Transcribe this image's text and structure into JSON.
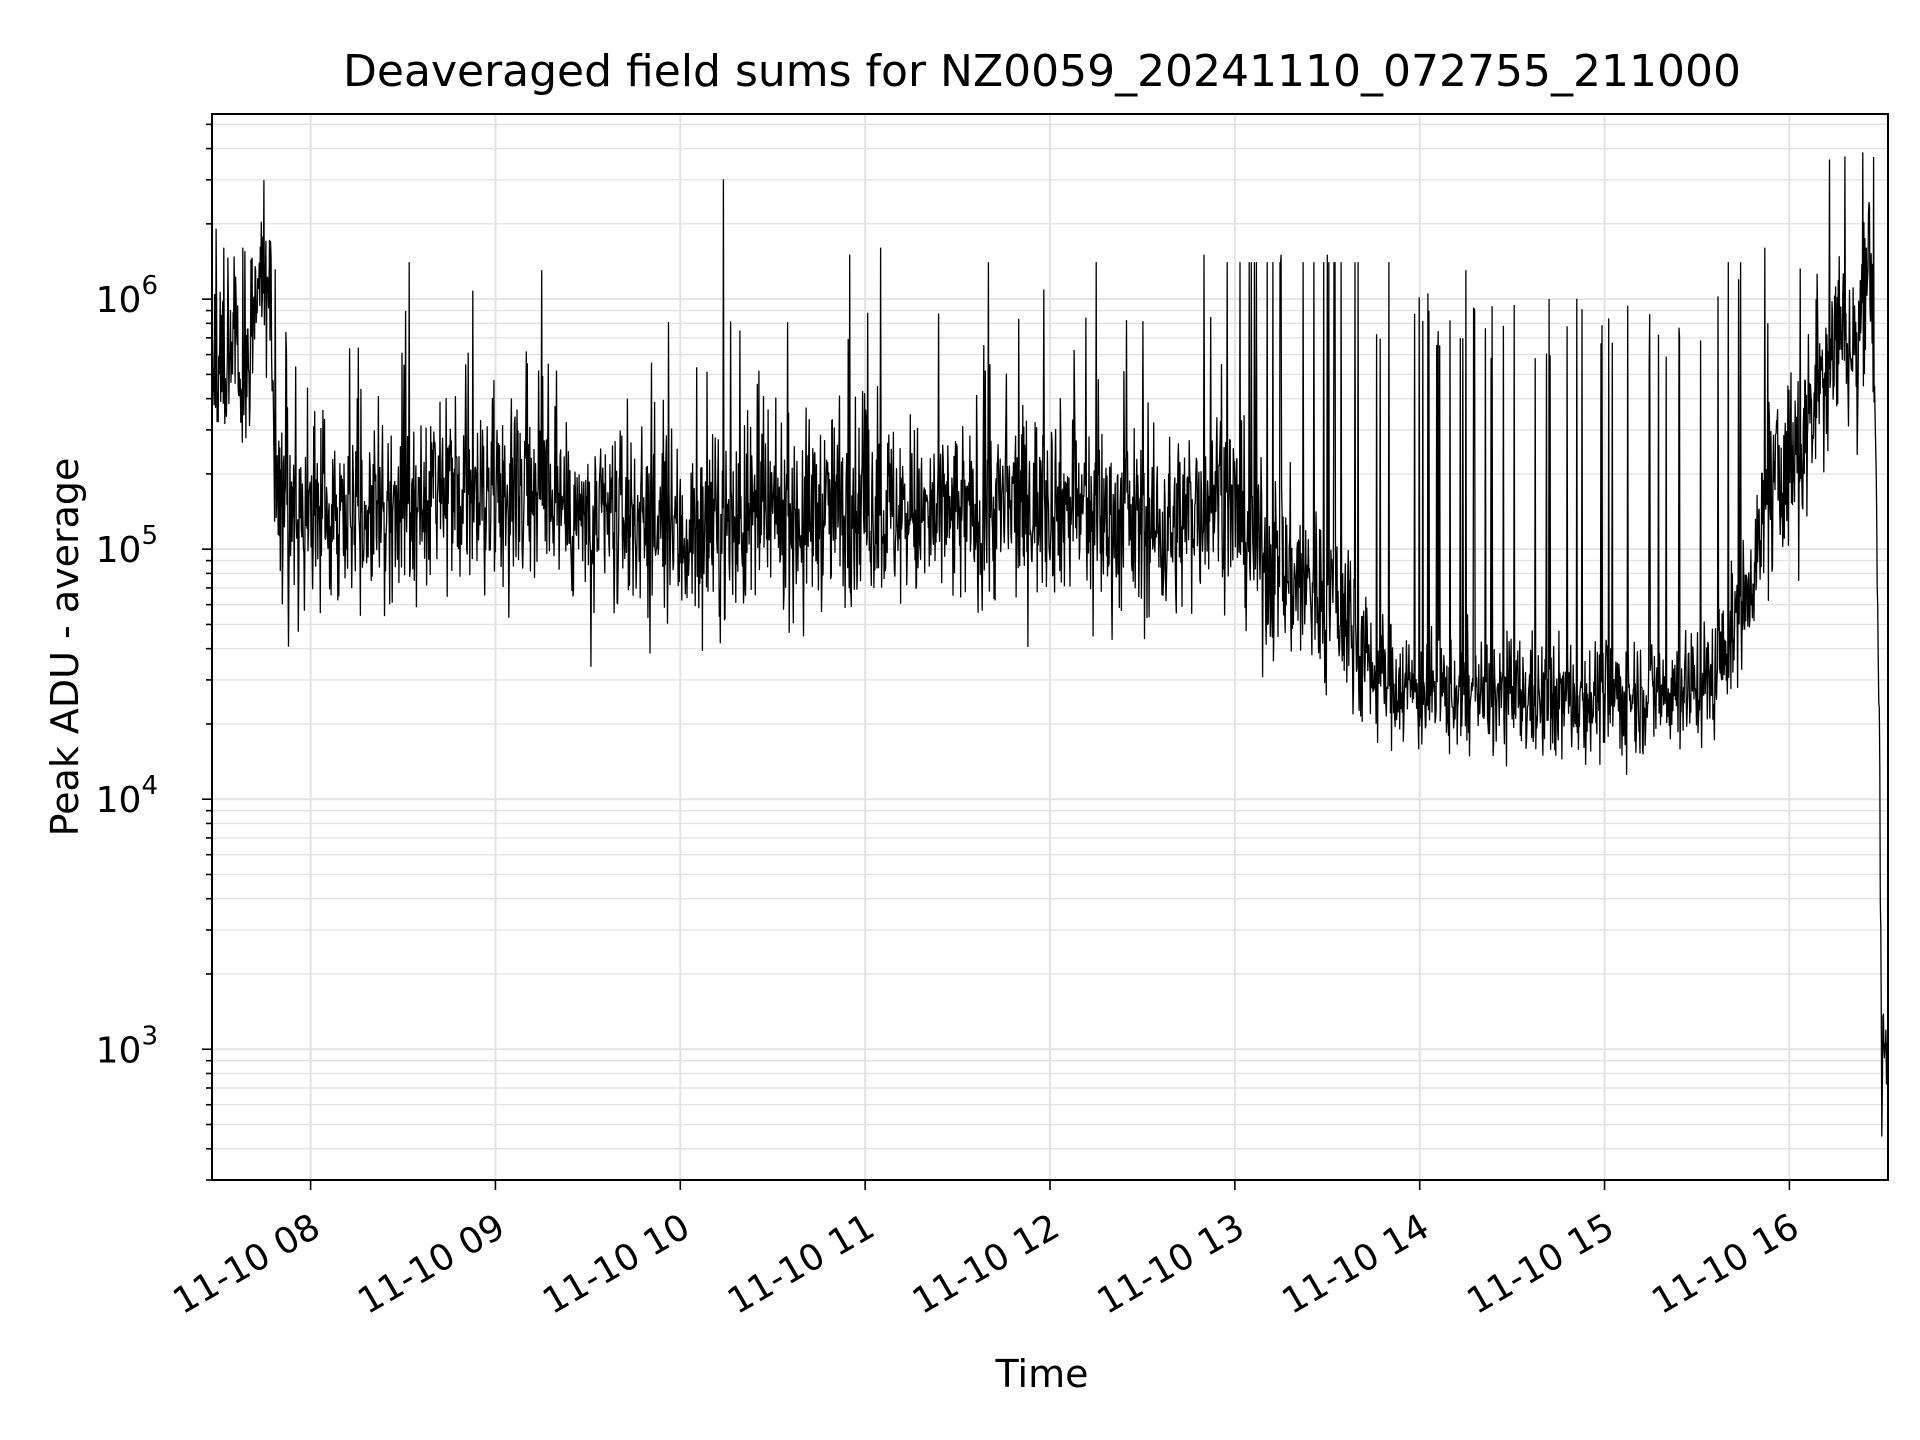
{
  "chart_data": {
    "type": "line",
    "title": "Deaveraged field sums for NZ0059_20241110_072755_211000",
    "xlabel": "Time",
    "ylabel": "Peak ADU - average",
    "yscale": "log",
    "ylim": [
      300,
      5500000
    ],
    "xlim": [
      "2024-11-10 07:28",
      "2024-11-10 16:32"
    ],
    "grid": true,
    "line_color": "#000000",
    "x_ticks": [
      {
        "label": "11-10 08",
        "t": "2024-11-10 08:00"
      },
      {
        "label": "11-10 09",
        "t": "2024-11-10 09:00"
      },
      {
        "label": "11-10 10",
        "t": "2024-11-10 10:00"
      },
      {
        "label": "11-10 11",
        "t": "2024-11-10 11:00"
      },
      {
        "label": "11-10 12",
        "t": "2024-11-10 12:00"
      },
      {
        "label": "11-10 13",
        "t": "2024-11-10 13:00"
      },
      {
        "label": "11-10 14",
        "t": "2024-11-10 14:00"
      },
      {
        "label": "11-10 15",
        "t": "2024-11-10 15:00"
      },
      {
        "label": "11-10 16",
        "t": "2024-11-10 16:00"
      }
    ],
    "y_ticks": [
      {
        "base": "10",
        "exp": "3",
        "value": 1000
      },
      {
        "base": "10",
        "exp": "4",
        "value": 10000
      },
      {
        "base": "10",
        "exp": "5",
        "value": 100000
      },
      {
        "base": "10",
        "exp": "6",
        "value": 1000000
      }
    ],
    "series": [
      {
        "x": [
          "2024-11-10 07:28",
          "2024-11-10 07:32",
          "2024-11-10 07:36",
          "2024-11-10 07:40",
          "2024-11-10 07:43",
          "2024-11-10 07:45",
          "2024-11-10 07:47",
          "2024-11-10 07:48",
          "2024-11-10 07:49",
          "2024-11-10 07:51",
          "2024-11-10 07:53",
          "2024-11-10 07:56",
          "2024-11-10 08:00",
          "2024-11-10 08:10",
          "2024-11-10 08:20",
          "2024-11-10 08:30",
          "2024-11-10 08:40",
          "2024-11-10 08:50",
          "2024-11-10 09:00",
          "2024-11-10 09:15",
          "2024-11-10 09:30",
          "2024-11-10 09:45",
          "2024-11-10 10:00",
          "2024-11-10 10:12",
          "2024-11-10 10:25",
          "2024-11-10 10:40",
          "2024-11-10 11:00",
          "2024-11-10 11:20",
          "2024-11-10 11:40",
          "2024-11-10 12:00",
          "2024-11-10 12:20",
          "2024-11-10 12:40",
          "2024-11-10 12:55",
          "2024-11-10 13:10",
          "2024-11-10 13:25",
          "2024-11-10 13:35",
          "2024-11-10 13:45",
          "2024-11-10 14:00",
          "2024-11-10 14:20",
          "2024-11-10 14:40",
          "2024-11-10 15:00",
          "2024-11-10 15:20",
          "2024-11-10 15:35",
          "2024-11-10 15:45",
          "2024-11-10 15:55",
          "2024-11-10 16:05",
          "2024-11-10 16:12",
          "2024-11-10 16:18",
          "2024-11-10 16:22",
          "2024-11-10 16:24",
          "2024-11-10 16:26",
          "2024-11-10 16:27",
          "2024-11-10 16:28",
          "2024-11-10 16:29",
          "2024-11-10 16:30",
          "2024-11-10 16:31",
          "2024-11-10 16:32"
        ],
        "y": [
          600000,
          560000,
          620000,
          540000,
          1100000,
          1500000,
          900000,
          350000,
          200000,
          150000,
          110000,
          120000,
          130000,
          150000,
          140000,
          130000,
          150000,
          160000,
          170000,
          180000,
          120000,
          140000,
          110000,
          120000,
          130000,
          140000,
          150000,
          130000,
          140000,
          160000,
          130000,
          120000,
          180000,
          90000,
          70000,
          60000,
          32000,
          27000,
          26000,
          25000,
          26000,
          27000,
          30000,
          60000,
          180000,
          280000,
          600000,
          800000,
          550000,
          1300000,
          1500000,
          1000000,
          300000,
          30000,
          700,
          900,
          1200
        ]
      }
    ],
    "spikes": [
      {
        "x": "2024-11-10 07:38",
        "y": 1600000
      },
      {
        "x": "2024-11-10 07:47",
        "y": 1700000
      },
      {
        "x": "2024-11-10 08:32",
        "y": 1400000
      },
      {
        "x": "2024-11-10 09:15",
        "y": 1300000
      },
      {
        "x": "2024-11-10 10:14",
        "y": 3000000
      },
      {
        "x": "2024-11-10 10:55",
        "y": 1500000
      },
      {
        "x": "2024-11-10 11:05",
        "y": 1600000
      },
      {
        "x": "2024-11-10 11:40",
        "y": 1400000
      },
      {
        "x": "2024-11-10 12:15",
        "y": 1400000
      },
      {
        "x": "2024-11-10 12:50",
        "y": 1500000
      },
      {
        "x": "2024-11-10 13:15",
        "y": 1500000
      },
      {
        "x": "2024-11-10 13:30",
        "y": 1500000
      },
      {
        "x": "2024-11-10 13:50",
        "y": 1400000
      },
      {
        "x": "2024-11-10 14:15",
        "y": 1300000
      },
      {
        "x": "2024-11-10 15:05",
        "y": 1200000
      },
      {
        "x": "2024-11-10 15:52",
        "y": 1600000
      },
      {
        "x": "2024-11-10 16:13",
        "y": 3600000
      },
      {
        "x": "2024-11-10 16:18",
        "y": 3700000
      },
      {
        "x": "2024-11-10 16:25",
        "y": 1600000
      }
    ],
    "dips": [
      {
        "x": "2024-11-10 07:56",
        "y": 47000
      },
      {
        "x": "2024-11-10 09:31",
        "y": 34000
      },
      {
        "x": "2024-11-10 10:40",
        "y": 45000
      },
      {
        "x": "2024-11-10 12:14",
        "y": 45000
      },
      {
        "x": "2024-11-10 14:40",
        "y": 15000
      },
      {
        "x": "2024-11-10 15:05",
        "y": 16000
      },
      {
        "x": "2024-11-10 16:03",
        "y": 75000
      },
      {
        "x": "2024-11-10 16:30",
        "y": 450
      }
    ]
  }
}
